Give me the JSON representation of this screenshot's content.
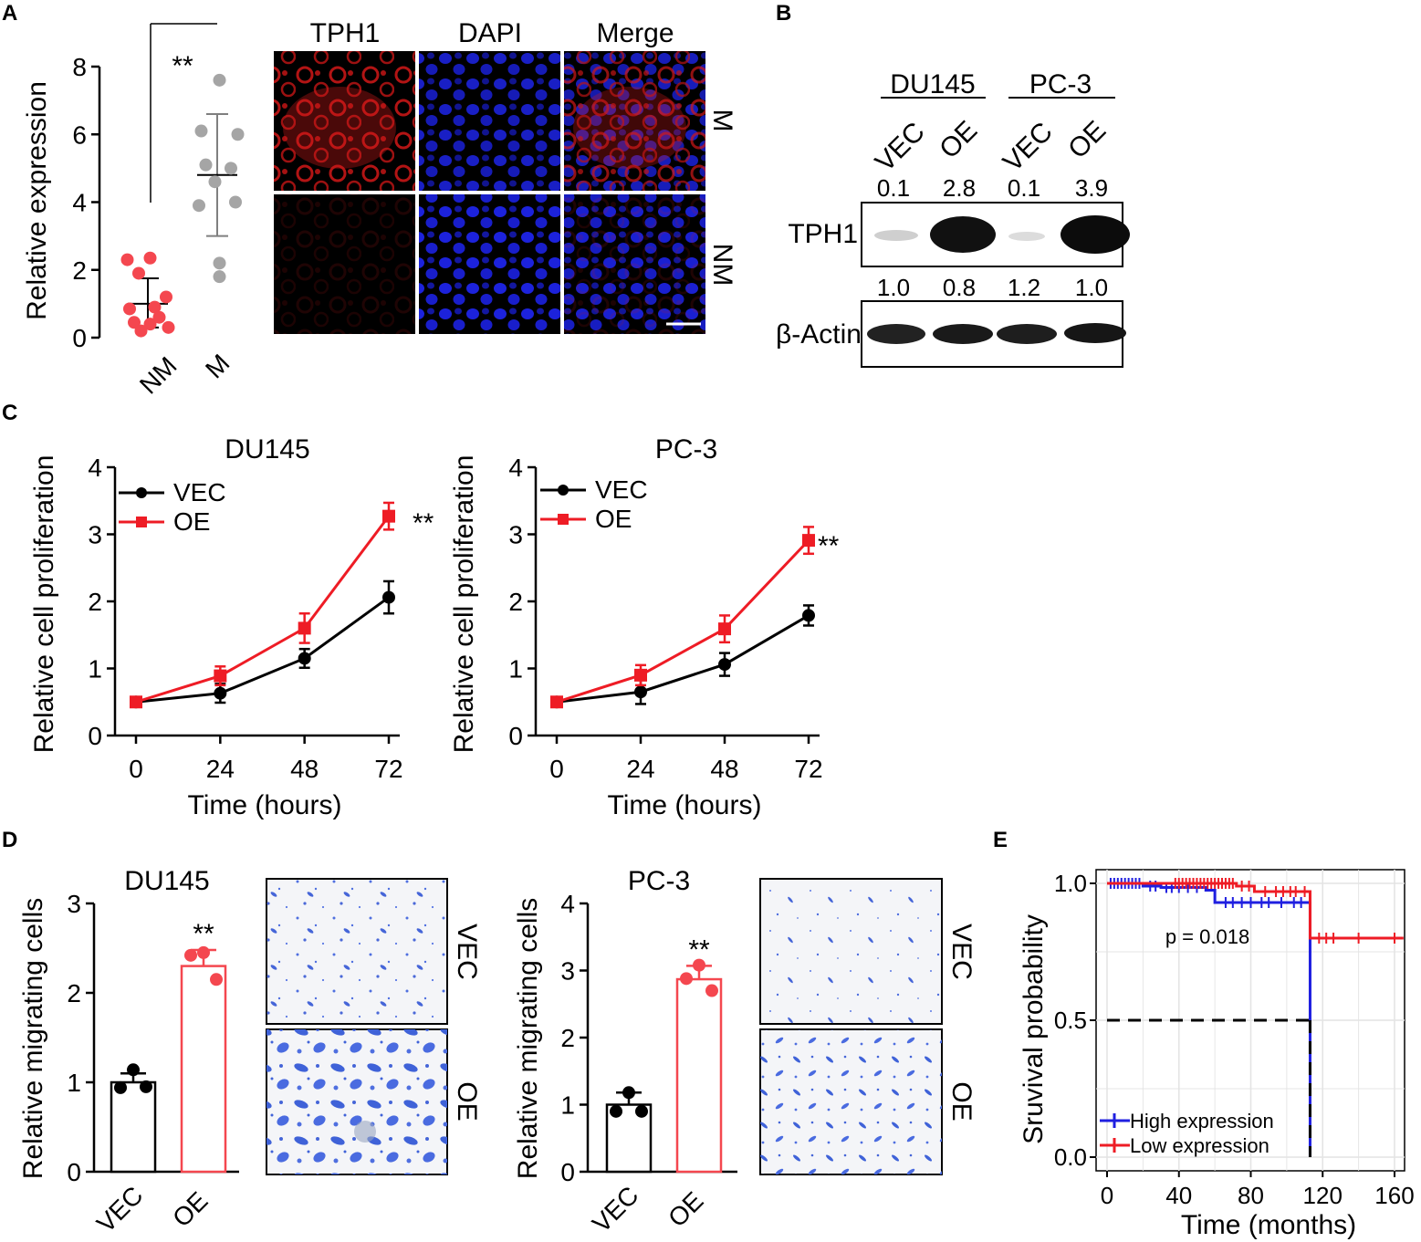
{
  "panels": {
    "A": {
      "letter": "A",
      "chart_data": {
        "type": "scatter",
        "ylabel": "Relative expression",
        "ylim": [
          0,
          8
        ],
        "yticks": [
          0,
          2,
          4,
          6,
          8
        ],
        "categories": [
          "NM",
          "M"
        ],
        "groups": [
          {
            "name": "NM",
            "color": "#f4474f",
            "mean": 1.0,
            "sd_low": 0.3,
            "sd_high": 1.75,
            "points": [
              [
                -0.45,
                2.3
              ],
              [
                0.05,
                2.35
              ],
              [
                -0.2,
                1.9
              ],
              [
                0.4,
                1.2
              ],
              [
                -0.4,
                0.85
              ],
              [
                0.15,
                0.9
              ],
              [
                -0.3,
                0.45
              ],
              [
                0.05,
                0.4
              ],
              [
                0.45,
                0.3
              ],
              [
                -0.15,
                0.2
              ],
              [
                0.25,
                0.6
              ]
            ]
          },
          {
            "name": "M",
            "color": "#a5a5a5",
            "mean": 4.8,
            "sd_low": 3.0,
            "sd_high": 6.6,
            "points": [
              [
                0.05,
                7.6
              ],
              [
                -0.35,
                6.1
              ],
              [
                0.45,
                6.0
              ],
              [
                -0.25,
                5.1
              ],
              [
                0.3,
                5.0
              ],
              [
                -0.05,
                4.6
              ],
              [
                0.4,
                4.0
              ],
              [
                -0.4,
                3.9
              ],
              [
                0.05,
                2.2
              ],
              [
                0.05,
                1.8
              ]
            ]
          }
        ],
        "significance": "**"
      },
      "images": {
        "col_labels": [
          "TPH1",
          "DAPI",
          "Merge"
        ],
        "row_labels": [
          "M",
          "NM"
        ]
      }
    },
    "B": {
      "letter": "B",
      "cell_lines": [
        "DU145",
        "PC-3"
      ],
      "lanes": [
        "VEC",
        "OE",
        "VEC",
        "OE"
      ],
      "tph1_quant": [
        "0.1",
        "2.8",
        "0.1",
        "3.9"
      ],
      "actin_quant": [
        "1.0",
        "0.8",
        "1.2",
        "1.0"
      ],
      "band_labels": [
        "TPH1",
        "β-Actin"
      ]
    },
    "C": {
      "letter": "C",
      "chart_data": [
        {
          "type": "line",
          "title": "DU145",
          "xlabel": "Time (hours)",
          "ylabel": "Relative cell proliferation",
          "x": [
            0,
            24,
            48,
            72
          ],
          "ylim": [
            0,
            4
          ],
          "yticks": [
            0,
            1,
            2,
            3,
            4
          ],
          "series": [
            {
              "name": "VEC",
              "color": "#000000",
              "marker": "circle",
              "values": [
                0.5,
                0.63,
                1.15,
                2.06
              ],
              "err": [
                0.03,
                0.14,
                0.14,
                0.24
              ]
            },
            {
              "name": "OE",
              "color": "#ee1c25",
              "marker": "square",
              "values": [
                0.5,
                0.89,
                1.6,
                3.27
              ],
              "err": [
                0.03,
                0.14,
                0.22,
                0.2
              ]
            }
          ],
          "significance": "**"
        },
        {
          "type": "line",
          "title": "PC-3",
          "xlabel": "Time (hours)",
          "ylabel": "Relative cell proliferation",
          "x": [
            0,
            24,
            48,
            72
          ],
          "ylim": [
            0,
            4
          ],
          "yticks": [
            0,
            1,
            2,
            3,
            4
          ],
          "series": [
            {
              "name": "VEC",
              "color": "#000000",
              "marker": "circle",
              "values": [
                0.5,
                0.65,
                1.06,
                1.79
              ],
              "err": [
                0.03,
                0.18,
                0.17,
                0.15
              ]
            },
            {
              "name": "OE",
              "color": "#ee1c25",
              "marker": "square",
              "values": [
                0.5,
                0.9,
                1.59,
                2.91
              ],
              "err": [
                0.03,
                0.15,
                0.2,
                0.2
              ]
            }
          ],
          "significance": "**"
        }
      ]
    },
    "D": {
      "letter": "D",
      "chart_data": [
        {
          "type": "bar",
          "title": "DU145",
          "ylabel": "Relative migrating cells",
          "categories": [
            "VEC",
            "OE"
          ],
          "values": [
            1.0,
            2.3
          ],
          "err": [
            0.1,
            0.18
          ],
          "colors": [
            "#000000",
            "#f4474f"
          ],
          "points": [
            [
              1.14,
              0.94,
              0.95
            ],
            [
              2.45,
              2.42,
              2.15
            ]
          ],
          "ylim": [
            0,
            3
          ],
          "yticks": [
            0,
            1,
            2,
            3
          ],
          "significance": "**"
        },
        {
          "type": "bar",
          "title": "PC-3",
          "ylabel": "Relative migrating cells",
          "categories": [
            "VEC",
            "OE"
          ],
          "values": [
            1.0,
            2.87
          ],
          "err": [
            0.18,
            0.2
          ],
          "colors": [
            "#000000",
            "#f4474f"
          ],
          "points": [
            [
              1.18,
              0.9,
              0.9
            ],
            [
              3.08,
              2.88,
              2.7
            ]
          ],
          "ylim": [
            0,
            4
          ],
          "yticks": [
            0,
            1,
            2,
            3,
            4
          ],
          "significance": "**"
        }
      ],
      "image_labels": [
        "VEC",
        "OE"
      ]
    },
    "E": {
      "letter": "E",
      "chart_data": {
        "type": "line",
        "xlabel": "Time (months)",
        "ylabel": "Sruvival probability",
        "xlim": [
          0,
          165
        ],
        "ylim": [
          0,
          1
        ],
        "xticks": [
          0,
          40,
          80,
          120,
          160
        ],
        "yticks": [
          "0.0",
          "0.5",
          "1.0"
        ],
        "pvalue": "p = 0.018",
        "median_line": 0.5,
        "series": [
          {
            "name": "High expression",
            "color": "#1f1fe0",
            "steps": [
              [
                0,
                1.0
              ],
              [
                20,
                1.0
              ],
              [
                20,
                0.99
              ],
              [
                30,
                0.99
              ],
              [
                30,
                0.985
              ],
              [
                55,
                0.985
              ],
              [
                55,
                0.975
              ],
              [
                60,
                0.975
              ],
              [
                60,
                0.93
              ],
              [
                113,
                0.93
              ],
              [
                113,
                0.0
              ]
            ],
            "censor": [
              2,
              4,
              6,
              8,
              10,
              12,
              14,
              16,
              18,
              24,
              27,
              33,
              36,
              40,
              45,
              50,
              66,
              70,
              75,
              80,
              86,
              90,
              97,
              104,
              108
            ]
          },
          {
            "name": "Low expression",
            "color": "#ee1c25",
            "steps": [
              [
                0,
                1.0
              ],
              [
                72,
                1.0
              ],
              [
                72,
                0.99
              ],
              [
                82,
                0.99
              ],
              [
                82,
                0.97
              ],
              [
                113,
                0.97
              ],
              [
                113,
                0.8
              ],
              [
                165,
                0.8
              ]
            ],
            "censor": [
              38,
              40,
              42,
              44,
              46,
              48,
              50,
              52,
              54,
              56,
              58,
              60,
              62,
              64,
              66,
              68,
              70,
              75,
              79,
              88,
              94,
              98,
              102,
              105,
              110,
              118,
              122,
              126,
              140,
              160
            ]
          }
        ]
      }
    }
  }
}
